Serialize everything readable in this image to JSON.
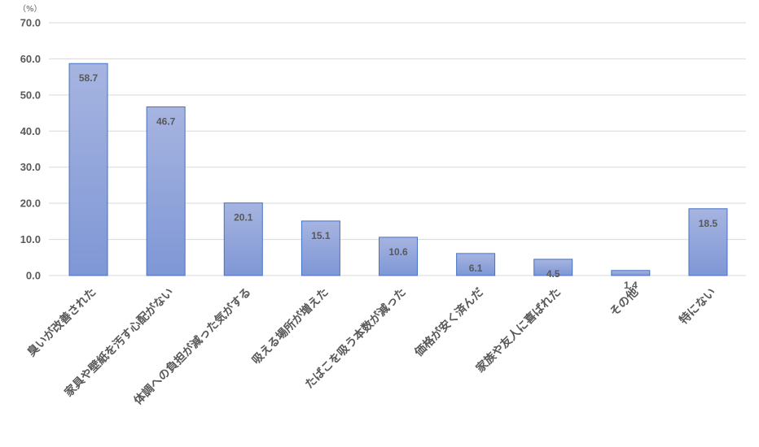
{
  "chart_data": {
    "type": "bar",
    "ylabel": "（%）",
    "ylim": [
      0,
      70
    ],
    "yticks": [
      "70.0",
      "60.0",
      "50.0",
      "40.0",
      "30.0",
      "20.0",
      "10.0",
      "0.0"
    ],
    "grid": true,
    "legend": "none",
    "categories": [
      "臭いが改善された",
      "家具や壁紙を汚す心配がない",
      "体調への負担が減った気がする",
      "吸える場所が増えた",
      "たばこを吸う本数が減った",
      "価格が安く済んだ",
      "家族や友人に喜ばれた",
      "その他",
      "特にない"
    ],
    "values": [
      58.7,
      46.7,
      20.1,
      15.1,
      10.6,
      6.1,
      4.5,
      1.4,
      18.5
    ],
    "value_labels": [
      "58.7",
      "46.7",
      "20.1",
      "15.1",
      "10.6",
      "6.1",
      "4.5",
      "1.4",
      "18.5"
    ],
    "colors": {
      "bar_top": "#a6b4e0",
      "bar_bottom": "#7f97d6",
      "bar_border": "#4472c4",
      "text": "#595959",
      "grid": "#d9d9d9"
    }
  }
}
